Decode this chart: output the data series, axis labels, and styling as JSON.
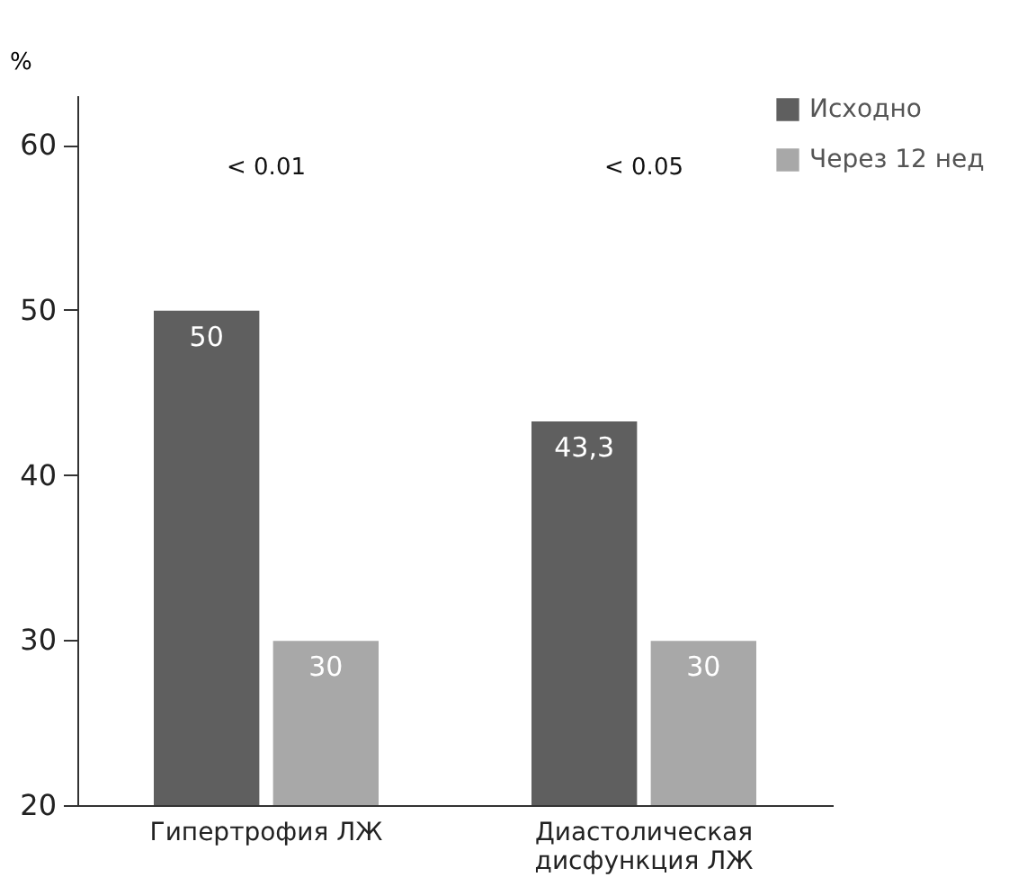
{
  "chart_data": {
    "type": "bar",
    "ylabel": "%",
    "categories": [
      "Гипертрофия ЛЖ",
      "Диастолическая дисфункция ЛЖ"
    ],
    "series": [
      {
        "name": "Исходно",
        "color": "#5f5f5f",
        "values": [
          50,
          43.3
        ],
        "value_labels": [
          "50",
          "43,3"
        ]
      },
      {
        "name": "Через 12 нед",
        "color": "#a8a8a8",
        "values": [
          30,
          30
        ],
        "value_labels": [
          "30",
          "30"
        ]
      }
    ],
    "ylim": [
      20,
      63
    ],
    "yticks": [
      20,
      30,
      40,
      50,
      60
    ],
    "annotations": [
      "< 0.01",
      "< 0.05"
    ],
    "legend": "top right",
    "grid": false
  }
}
